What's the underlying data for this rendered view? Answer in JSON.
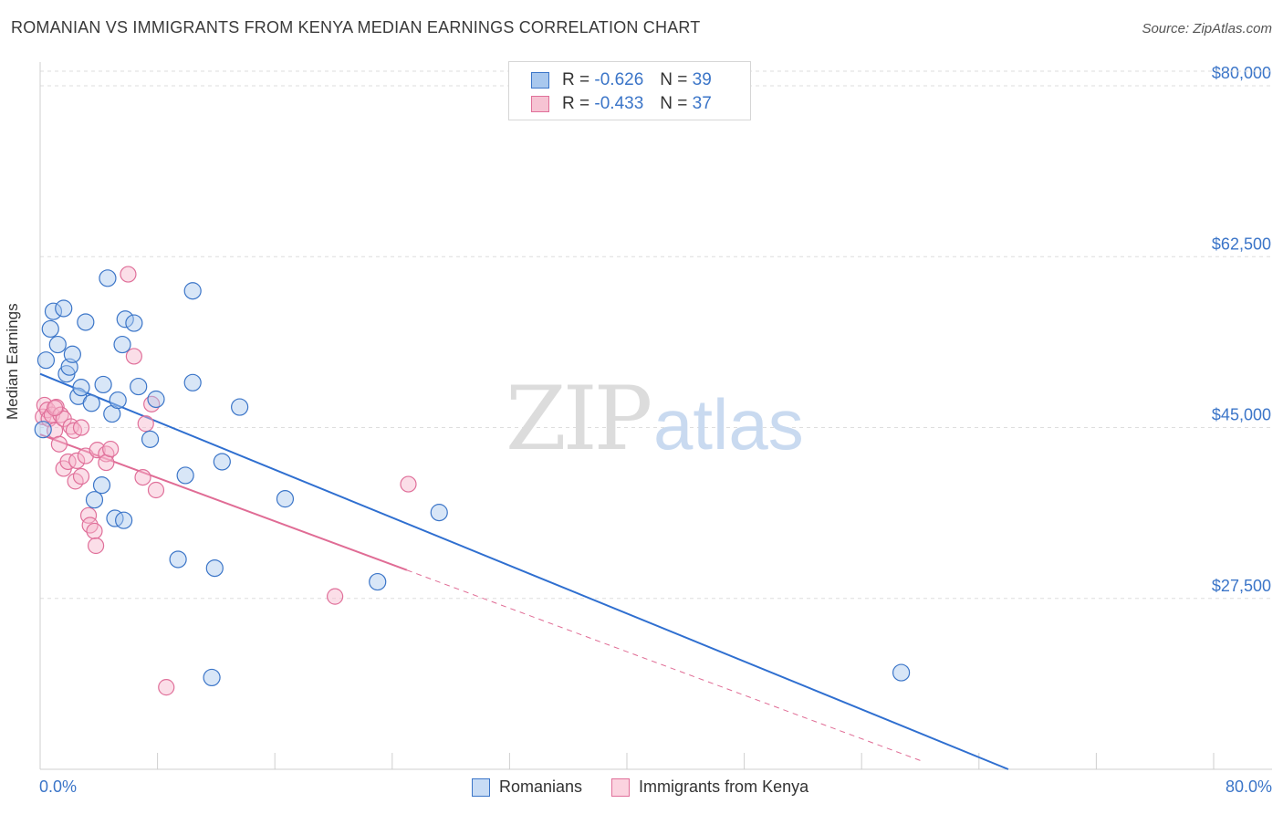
{
  "header": {
    "title": "ROMANIAN VS IMMIGRANTS FROM KENYA MEDIAN EARNINGS CORRELATION CHART",
    "source": "Source: ZipAtlas.com"
  },
  "watermark": {
    "zip": "ZIP",
    "atlas": "atlas"
  },
  "legend_top": {
    "rows": [
      {
        "r_label": "R =",
        "r_value": "-0.626",
        "n_label": "N =",
        "n_value": "39"
      },
      {
        "r_label": "R =",
        "r_value": "-0.433",
        "n_label": "N =",
        "n_value": "37"
      }
    ]
  },
  "legend_bottom": {
    "romanians": "Romanians",
    "kenya": "Immigrants from Kenya"
  },
  "axis": {
    "x_min_label": "0.0%",
    "x_max_label": "80.0%",
    "y_label": "Median Earnings"
  },
  "colors": {
    "blue": "#3b75c8",
    "blue_fill": "#a9c8ee",
    "blue_line": "#2f6fd0",
    "pink": "#e0709a",
    "pink_fill": "#f6b6cb",
    "pink_line": "#e06c95",
    "grid": "#dedede",
    "axis_text": "#3b75c8"
  },
  "chart_data": {
    "type": "scatter",
    "title": "ROMANIAN VS IMMIGRANTS FROM KENYA MEDIAN EARNINGS CORRELATION CHART",
    "xlabel": "",
    "ylabel": "Median Earnings",
    "xlim": [
      0,
      80
    ],
    "ylim": [
      10000,
      81500
    ],
    "y_ticks": [
      {
        "value": 27500,
        "label": "$27,500"
      },
      {
        "value": 45000,
        "label": "$45,000"
      },
      {
        "value": 62500,
        "label": "$62,500"
      },
      {
        "value": 80000,
        "label": "$80,000"
      }
    ],
    "series": [
      {
        "name": "Romanians",
        "r": -0.626,
        "n": 39,
        "trend": {
          "x0": 0,
          "y0": 50500,
          "x1": 66,
          "y1": 10000
        },
        "points": [
          [
            0.2,
            44800
          ],
          [
            0.4,
            51900
          ],
          [
            0.7,
            55100
          ],
          [
            0.9,
            56900
          ],
          [
            1.2,
            53500
          ],
          [
            1.6,
            57200
          ],
          [
            1.8,
            50500
          ],
          [
            2.0,
            51200
          ],
          [
            2.2,
            52500
          ],
          [
            2.6,
            48200
          ],
          [
            2.8,
            49100
          ],
          [
            3.1,
            55800
          ],
          [
            3.5,
            47500
          ],
          [
            3.7,
            37600
          ],
          [
            4.2,
            39100
          ],
          [
            4.3,
            49400
          ],
          [
            4.6,
            60300
          ],
          [
            4.9,
            46400
          ],
          [
            5.1,
            35700
          ],
          [
            5.3,
            47800
          ],
          [
            5.7,
            35500
          ],
          [
            5.6,
            53500
          ],
          [
            5.8,
            56100
          ],
          [
            6.4,
            55700
          ],
          [
            6.7,
            49200
          ],
          [
            7.5,
            43800
          ],
          [
            7.9,
            47900
          ],
          [
            9.4,
            31500
          ],
          [
            9.9,
            40100
          ],
          [
            10.4,
            49600
          ],
          [
            10.4,
            59000
          ],
          [
            11.7,
            19400
          ],
          [
            11.9,
            30600
          ],
          [
            12.4,
            41500
          ],
          [
            13.6,
            47100
          ],
          [
            16.7,
            37700
          ],
          [
            23.0,
            29200
          ],
          [
            27.2,
            36300
          ],
          [
            58.7,
            19900
          ]
        ]
      },
      {
        "name": "Immigrants from Kenya",
        "r": -0.433,
        "n": 37,
        "trend": {
          "x0": 0,
          "y0": 44300,
          "x1": 25,
          "y1": 30400,
          "dashed_to_x": 60,
          "dashed_to_y": 10900
        },
        "points": [
          [
            0.2,
            46100
          ],
          [
            0.3,
            47300
          ],
          [
            0.5,
            46800
          ],
          [
            0.6,
            45900
          ],
          [
            0.8,
            46300
          ],
          [
            1.0,
            44700
          ],
          [
            1.1,
            47100
          ],
          [
            1.3,
            43300
          ],
          [
            1.4,
            46300
          ],
          [
            1.6,
            45900
          ],
          [
            1.6,
            40800
          ],
          [
            1.9,
            41500
          ],
          [
            2.1,
            45100
          ],
          [
            2.3,
            44700
          ],
          [
            2.4,
            39500
          ],
          [
            2.5,
            41600
          ],
          [
            2.8,
            45000
          ],
          [
            2.8,
            40000
          ],
          [
            3.1,
            42100
          ],
          [
            3.3,
            36000
          ],
          [
            3.4,
            35000
          ],
          [
            3.7,
            34400
          ],
          [
            3.8,
            32900
          ],
          [
            3.9,
            42700
          ],
          [
            4.5,
            42300
          ],
          [
            4.5,
            41400
          ],
          [
            4.8,
            42800
          ],
          [
            6.0,
            60700
          ],
          [
            6.4,
            52300
          ],
          [
            7.0,
            39900
          ],
          [
            7.2,
            45400
          ],
          [
            7.6,
            47400
          ],
          [
            7.9,
            38600
          ],
          [
            8.6,
            18400
          ],
          [
            20.1,
            27700
          ],
          [
            25.1,
            39200
          ],
          [
            1.0,
            47000
          ]
        ]
      }
    ]
  }
}
